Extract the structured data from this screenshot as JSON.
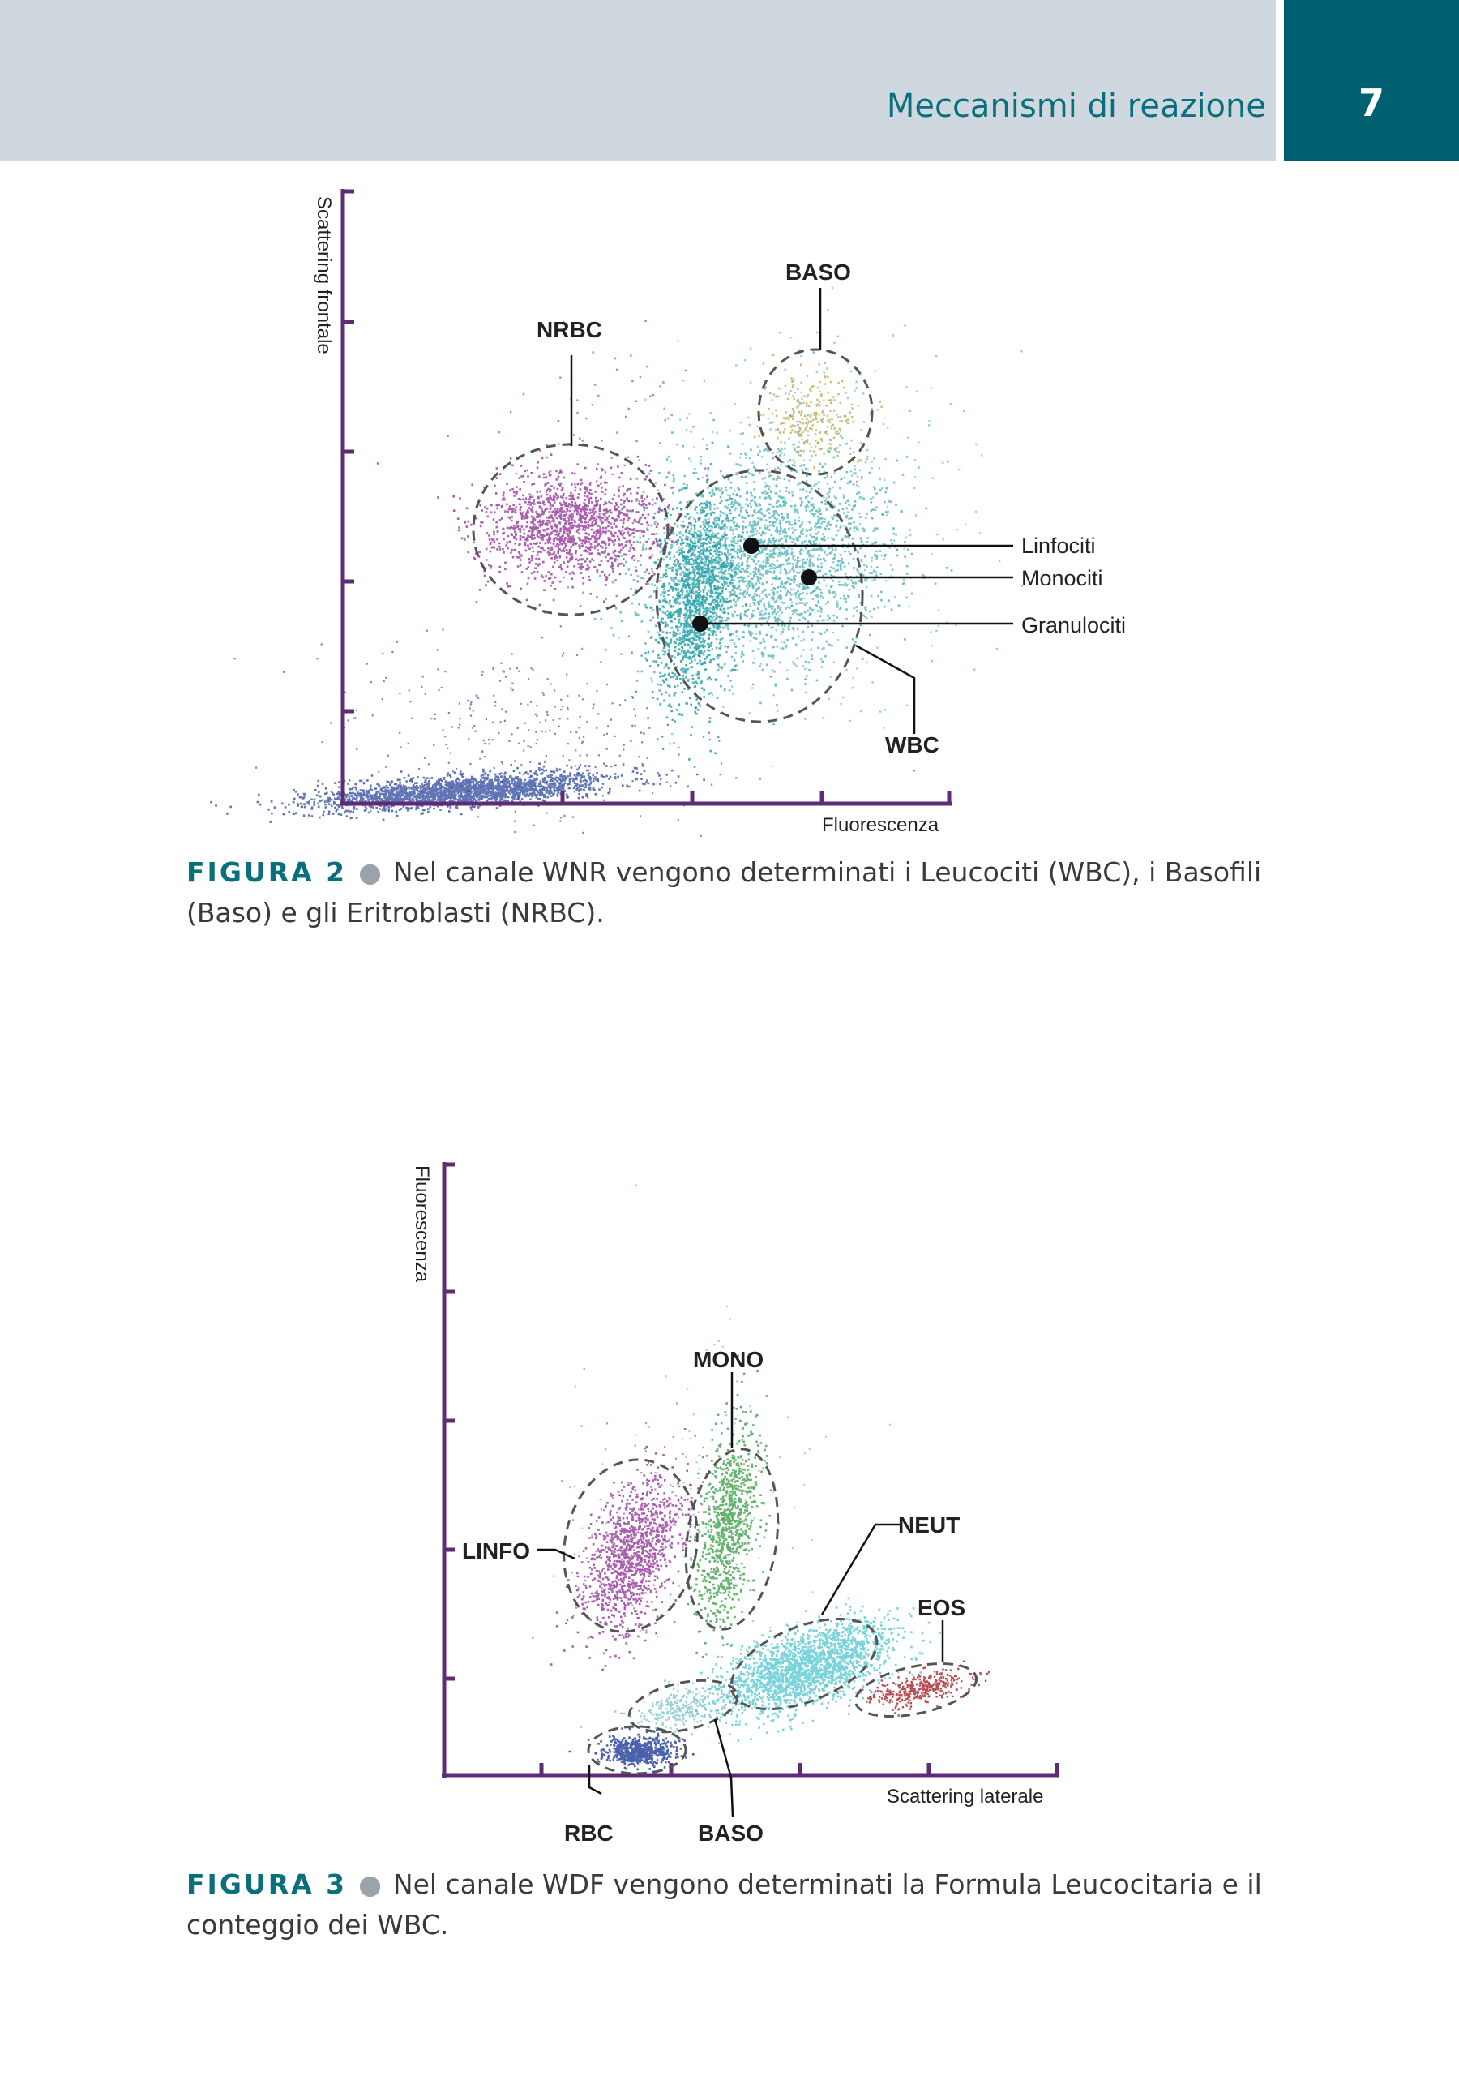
{
  "header": {
    "chapter_title": "Meccanismi di reazione",
    "page_number": "7"
  },
  "colors": {
    "header_band": "#d0d8df",
    "page_box": "#00606f",
    "accent_text": "#0a6f7d",
    "axis": "#5e2b76",
    "nrbc": "#8e2b93",
    "wbc": "#169ba3",
    "baso_wnr": "#b3a749",
    "rbc_debris": "#1e3a96",
    "lymph": "#8e2b93",
    "mono": "#2f9a3c",
    "neut": "#3ec0cc",
    "eos": "#a3232b",
    "baso_wdf": "#6fbcc2"
  },
  "figure2": {
    "y_axis_label": "Scattering frontale",
    "x_axis_label": "Fluorescenza",
    "labels": {
      "nrbc": "NRBC",
      "baso": "BASO",
      "wbc": "WBC",
      "linfociti": "Linfociti",
      "monociti": "Monociti",
      "granulociti": "Granulociti"
    },
    "caption": {
      "label": "FIGURA 2",
      "text": "Nel canale WNR vengono determinati i Leucociti (WBC), i Basofili (Baso) e gli Eri­troblasti (NRBC)."
    }
  },
  "figure3": {
    "y_axis_label": "Fluorescenza",
    "x_axis_label": "Scattering laterale",
    "labels": {
      "mono": "MONO",
      "linfo": "LINFO",
      "neut": "NEUT",
      "eos": "EOS",
      "rbc": "RBC",
      "baso": "BASO"
    },
    "caption": {
      "label": "FIGURA 3",
      "text": "Nel canale WDF vengono determinati la Formula Leucocitaria e il conteggio dei WBC."
    }
  }
}
